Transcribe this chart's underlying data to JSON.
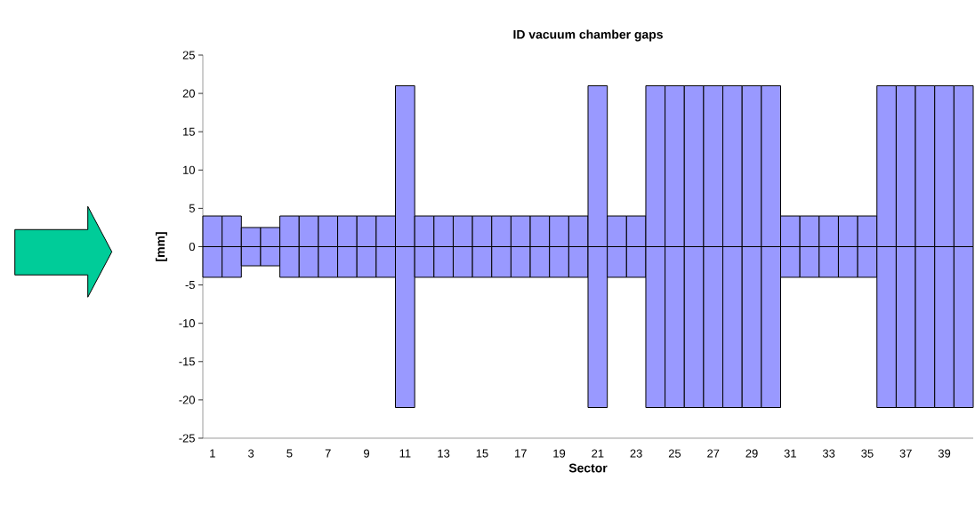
{
  "chart_data": {
    "type": "bar",
    "title": "ID vacuum chamber gaps",
    "xlabel": "Sector",
    "ylabel": "[mm]",
    "categories": [
      "1",
      null,
      "3",
      null,
      "5",
      null,
      "7",
      null,
      "9",
      null,
      "11",
      null,
      "13",
      null,
      "15",
      null,
      "17",
      null,
      "19",
      null,
      "21",
      null,
      "23",
      null,
      "25",
      null,
      "27",
      null,
      "29",
      null,
      "31",
      null,
      "33",
      null,
      "35",
      null,
      "37",
      null,
      "39",
      null
    ],
    "series": [
      {
        "color": "#9999ff",
        "values": [
          4,
          4,
          2.5,
          2.5,
          4,
          4,
          4,
          4,
          4,
          4,
          21,
          4,
          4,
          4,
          4,
          4,
          4,
          4,
          4,
          4,
          21,
          4,
          4,
          21,
          21,
          21,
          21,
          21,
          21,
          21,
          4,
          4,
          4,
          4,
          4,
          21,
          21,
          21,
          21,
          21
        ]
      },
      {
        "color": "#9999ff",
        "values": [
          -4,
          -4,
          -2.5,
          -2.5,
          -4,
          -4,
          -4,
          -4,
          -4,
          -4,
          -21,
          -4,
          -4,
          -4,
          -4,
          -4,
          -4,
          -4,
          -4,
          -4,
          -21,
          -4,
          -4,
          -21,
          -21,
          -21,
          -21,
          -21,
          -21,
          -21,
          -4,
          -4,
          -4,
          -4,
          -4,
          -21,
          -21,
          -21,
          -21,
          -21
        ]
      }
    ],
    "stacked": true,
    "ylim": [
      -25,
      25
    ],
    "yticks": [
      -25,
      -20,
      -15,
      -10,
      -5,
      0,
      5,
      10,
      15,
      20,
      25
    ]
  }
}
